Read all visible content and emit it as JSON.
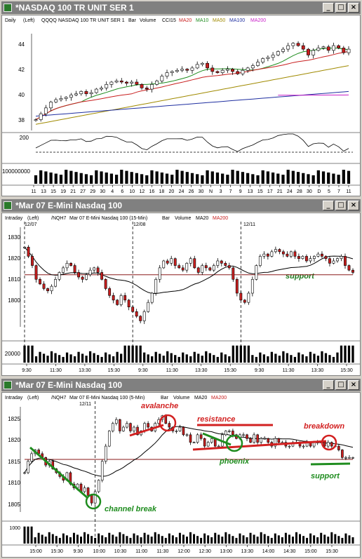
{
  "windows": [
    {
      "title": "*NASDAQ 100 TR UNIT SER 1",
      "header": {
        "period": "Daily",
        "axis": "(Left)",
        "symbol": "QQQQ",
        "name": "NASDAQ 100 TR UNIT SER 1",
        "items": [
          "Bar",
          "Volume",
          "CCI15"
        ],
        "ma": [
          {
            "label": "MA20",
            "color": "#c81e1e"
          },
          {
            "label": "MA10",
            "color": "#1e8c1e"
          },
          {
            "label": "MA50",
            "color": "#a08a00"
          },
          {
            "label": "MA100",
            "color": "#1e2ea0"
          },
          {
            "label": "MA200",
            "color": "#c81ec8"
          }
        ]
      },
      "price_ticks": [
        "44",
        "42",
        "40",
        "38"
      ],
      "cci_ticks": [
        "200"
      ],
      "volume_ticks": [
        "100000000"
      ],
      "x_labels": [
        "11",
        "13",
        "15",
        "19",
        "21",
        "27",
        "29",
        "30",
        "4",
        "6",
        "10",
        "12",
        "16",
        "18",
        "20",
        "24",
        "26",
        "30",
        "N",
        "3",
        "7",
        "9",
        "13",
        "15",
        "17",
        "21",
        "24",
        "28",
        "30",
        "D",
        "5",
        "7",
        "11"
      ]
    },
    {
      "title": "*Mar 07  E-Mini Nasdaq 100",
      "header": {
        "period": "Intraday",
        "axis": "(Left)",
        "symbol": "/NQH7",
        "name": "Mar 07  E-Mini Nasdaq 100 (15-Min)",
        "items": [
          "Bar",
          "Volume"
        ],
        "ma": [
          {
            "label": "MA20",
            "color": "#000000"
          },
          {
            "label": "MA200",
            "color": "#c81e1e"
          }
        ]
      },
      "date_marks": [
        "12/07",
        "12/08",
        "12/11"
      ],
      "price_ticks": [
        "1830",
        "1820",
        "1810",
        "1800"
      ],
      "volume_ticks": [
        "20000"
      ],
      "x_labels": [
        "9:30",
        "11:30",
        "13:30",
        "15:30",
        "9:30",
        "11:30",
        "13:30",
        "15:30",
        "9:30",
        "11:30",
        "13:30",
        "15:30"
      ],
      "annotations": [
        {
          "text": "support",
          "color": "#1e7a1e"
        }
      ]
    },
    {
      "title": "*Mar 07  E-Mini Nasdaq 100",
      "header": {
        "period": "Intraday",
        "axis": "(Left)",
        "symbol": "/NQH7",
        "name": "Mar 07  E-Mini Nasdaq 100 (5-Min)",
        "items": [
          "Bar",
          "Volume"
        ],
        "ma": [
          {
            "label": "MA20",
            "color": "#000000"
          },
          {
            "label": "MA200",
            "color": "#c81e1e"
          }
        ]
      },
      "date_marks": [
        "12/11"
      ],
      "price_ticks": [
        "1825",
        "1820",
        "1815",
        "1810",
        "1805"
      ],
      "volume_ticks": [
        "1000"
      ],
      "x_labels": [
        "15:00",
        "15:30",
        "9:30",
        "10:00",
        "10:30",
        "11:00",
        "11:30",
        "12:00",
        "12:30",
        "13:00",
        "13:30",
        "14:00",
        "14:30",
        "15:00",
        "15:30"
      ],
      "annotations": [
        {
          "text": "avalanche",
          "color": "#d22020"
        },
        {
          "text": "resistance",
          "color": "#d22020"
        },
        {
          "text": "breakdown",
          "color": "#d22020"
        },
        {
          "text": "phoenix",
          "color": "#1e8c1e"
        },
        {
          "text": "support",
          "color": "#1e8c1e"
        },
        {
          "text": "channel break",
          "color": "#1e8c1e"
        }
      ]
    }
  ],
  "chart_data": [
    {
      "type": "candlestick",
      "title": "NASDAQ 100 TR UNIT SER 1",
      "ylim": [
        37.5,
        45.5
      ],
      "close": [
        38.3,
        38.8,
        39.3,
        39.8,
        40.0,
        40.1,
        40.2,
        40.4,
        40.5,
        40.7,
        40.5,
        40.6,
        40.9,
        41.0,
        41.3,
        41.5,
        41.6,
        41.5,
        41.4,
        41.5,
        41.3,
        41.0,
        40.9,
        41.3,
        41.6,
        42.0,
        42.3,
        42.4,
        42.5,
        42.6,
        42.5,
        42.7,
        43.0,
        43.1,
        42.7,
        42.4,
        42.3,
        42.5,
        42.6,
        42.4,
        42.2,
        42.5,
        42.7,
        42.9,
        43.2,
        43.5,
        43.6,
        43.8,
        44.1,
        44.3,
        44.6,
        44.8,
        44.6,
        44.3,
        43.8,
        44.2,
        44.4,
        44.5,
        44.2,
        44.6,
        44.4,
        44.0,
        44.3
      ],
      "moving_averages": [
        "MA20",
        "MA10",
        "MA50",
        "MA100",
        "MA200"
      ],
      "cci_range": [
        -200,
        200
      ],
      "volume_axis": "100000000"
    },
    {
      "type": "candlestick",
      "title": "Mar 07 E-Mini Nasdaq 100 (15-Min)",
      "ylim": [
        1792,
        1834
      ],
      "sessions": [
        "12/07",
        "12/08",
        "12/11"
      ],
      "close": [
        1826,
        1822,
        1818,
        1812,
        1810,
        1808,
        1807,
        1809,
        1812,
        1815,
        1817,
        1819,
        1818,
        1815,
        1813,
        1812,
        1814,
        1816,
        1817,
        1815,
        1812,
        1808,
        1805,
        1803,
        1801,
        1805,
        1803,
        1800,
        1798,
        1796,
        1794,
        1798,
        1802,
        1806,
        1812,
        1817,
        1820,
        1819,
        1821,
        1818,
        1817,
        1816,
        1819,
        1821,
        1817,
        1815,
        1818,
        1817,
        1816,
        1818,
        1820,
        1819,
        1818,
        1817,
        1812,
        1806,
        1803,
        1802,
        1806,
        1812,
        1818,
        1822,
        1823,
        1822,
        1824,
        1825,
        1824,
        1823,
        1822,
        1824,
        1822,
        1821,
        1822,
        1820,
        1821,
        1822,
        1823,
        1822,
        1821,
        1819,
        1820,
        1821,
        1822,
        1818,
        1816,
        1815
      ],
      "ma200": 1814,
      "annotations": [
        "support"
      ]
    },
    {
      "type": "candlestick",
      "title": "Mar 07 E-Mini Nasdaq 100 (5-Min)",
      "ylim": [
        1801,
        1828
      ],
      "close": [
        1811,
        1814,
        1816,
        1817,
        1816,
        1815,
        1813,
        1814,
        1812,
        1811,
        1810,
        1809,
        1811,
        1808,
        1807,
        1808,
        1806,
        1807,
        1805,
        1803,
        1806,
        1809,
        1814,
        1818,
        1822,
        1824,
        1825,
        1822,
        1823,
        1824,
        1822,
        1823,
        1821,
        1822,
        1824,
        1823,
        1822,
        1824,
        1825,
        1826,
        1824,
        1823,
        1822,
        1822,
        1823,
        1821,
        1821,
        1819,
        1819,
        1821,
        1820,
        1818,
        1819,
        1820,
        1818,
        1818,
        1821,
        1822,
        1822,
        1821,
        1820,
        1821,
        1821,
        1820,
        1819,
        1821,
        1819,
        1820,
        1820,
        1819,
        1818,
        1820,
        1819,
        1819,
        1818,
        1818,
        1819,
        1819,
        1818,
        1818,
        1819,
        1818,
        1819,
        1819,
        1819,
        1818,
        1819,
        1818,
        1818,
        1817,
        1815,
        1815,
        1815,
        1815
      ],
      "ma200": 1814.5,
      "annotations": [
        "avalanche",
        "resistance",
        "breakdown",
        "phoenix",
        "support",
        "channel break"
      ]
    }
  ]
}
